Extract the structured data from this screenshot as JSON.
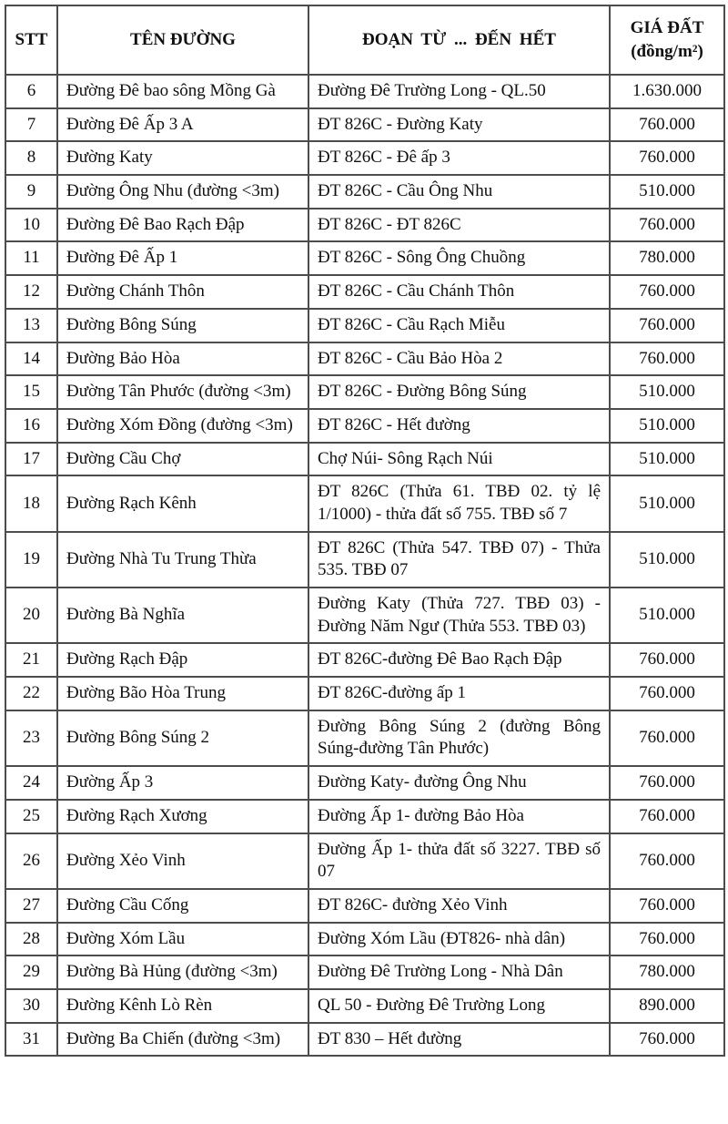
{
  "table": {
    "headers": {
      "stt": "STT",
      "name": "TÊN ĐƯỜNG",
      "section": "ĐOẠN TỪ ... ĐẾN HẾT",
      "price_line1": "GIÁ ĐẤT",
      "price_line2": "(đồng/m²)"
    },
    "rows": [
      {
        "stt": "6",
        "name": "Đường Đê bao sông Mồng Gà",
        "section": "Đường Đê Trường Long - QL.50",
        "price": "1.630.000"
      },
      {
        "stt": "7",
        "name": "Đường Đê Ấp 3 A",
        "section": "ĐT 826C - Đường Katy",
        "price": "760.000"
      },
      {
        "stt": "8",
        "name": "Đường Katy",
        "section": "ĐT 826C - Đê ấp 3",
        "price": "760.000"
      },
      {
        "stt": "9",
        "name": "Đường Ông Nhu (đường <3m)",
        "section": "ĐT 826C - Cầu Ông Nhu",
        "price": "510.000"
      },
      {
        "stt": "10",
        "name": "Đường Đê Bao Rạch Đập",
        "section": "ĐT 826C - ĐT 826C",
        "price": "760.000"
      },
      {
        "stt": "11",
        "name": "Đường Đê Ấp 1",
        "section": "ĐT 826C - Sông Ông Chuồng",
        "price": "780.000"
      },
      {
        "stt": "12",
        "name": "Đường Chánh Thôn",
        "section": "ĐT 826C - Cầu Chánh Thôn",
        "price": "760.000"
      },
      {
        "stt": "13",
        "name": "Đường Bông Súng",
        "section": "ĐT 826C - Cầu Rạch Miễu",
        "price": "760.000"
      },
      {
        "stt": "14",
        "name": "Đường Bảo Hòa",
        "section": "ĐT 826C - Cầu Bảo Hòa 2",
        "price": "760.000"
      },
      {
        "stt": "15",
        "name": "Đường Tân Phước (đường <3m)",
        "section": "ĐT 826C - Đường Bông Súng",
        "price": "510.000"
      },
      {
        "stt": "16",
        "name": "Đường Xóm Đồng (đường <3m)",
        "section": "ĐT 826C - Hết đường",
        "price": "510.000"
      },
      {
        "stt": "17",
        "name": "Đường Cầu Chợ",
        "section": "Chợ Núi- Sông Rạch Núi",
        "price": "510.000"
      },
      {
        "stt": "18",
        "name": "Đường Rạch Kênh",
        "section": "ĐT 826C (Thửa 61. TBĐ 02. tỷ lệ 1/1000) - thửa đất số 755. TBĐ số 7",
        "price": "510.000"
      },
      {
        "stt": "19",
        "name": "Đường Nhà Tu Trung Thừa",
        "section": "ĐT 826C (Thửa 547. TBĐ 07) - Thửa 535. TBĐ 07",
        "price": "510.000"
      },
      {
        "stt": "20",
        "name": "Đường Bà Nghĩa",
        "section": "Đường Katy (Thửa 727. TBĐ 03) - Đường Năm Ngư (Thửa 553. TBĐ 03)",
        "price": "510.000"
      },
      {
        "stt": "21",
        "name": "Đường Rạch Đập",
        "section": "ĐT 826C-đường Đê Bao Rạch Đập",
        "price": "760.000"
      },
      {
        "stt": "22",
        "name": "Đường Bão Hòa Trung",
        "section": "ĐT 826C-đường ấp 1",
        "price": "760.000"
      },
      {
        "stt": "23",
        "name": "Đường Bông Súng 2",
        "section": "Đường Bông Súng 2 (đường Bông Súng-đường Tân Phước)",
        "price": "760.000"
      },
      {
        "stt": "24",
        "name": "Đường Ấp 3",
        "section": "Đường Katy- đường Ông Nhu",
        "price": "760.000"
      },
      {
        "stt": "25",
        "name": "Đường Rạch Xương",
        "section": "Đường Ấp 1- đường Bảo Hòa",
        "price": "760.000"
      },
      {
        "stt": "26",
        "name": "Đường Xẻo Vinh",
        "section": "Đường Ấp 1- thửa đất số 3227. TBĐ số 07",
        "price": "760.000"
      },
      {
        "stt": "27",
        "name": "Đường Cầu Cống",
        "section": "ĐT 826C- đường Xẻo Vinh",
        "price": "760.000"
      },
      {
        "stt": "28",
        "name": "Đường Xóm Lầu",
        "section": "Đường Xóm Lầu (ĐT826- nhà dân)",
        "price": "760.000"
      },
      {
        "stt": "29",
        "name": "Đường Bà Hủng (đường <3m)",
        "section": "Đường Đê Trường Long - Nhà Dân",
        "price": "780.000"
      },
      {
        "stt": "30",
        "name": "Đường Kênh Lò Rèn",
        "section": "QL 50 - Đường Đê Trường Long",
        "price": "890.000"
      },
      {
        "stt": "31",
        "name": "Đường Ba Chiến (đường <3m)",
        "section": "ĐT 830 – Hết đường",
        "price": "760.000"
      }
    ]
  }
}
